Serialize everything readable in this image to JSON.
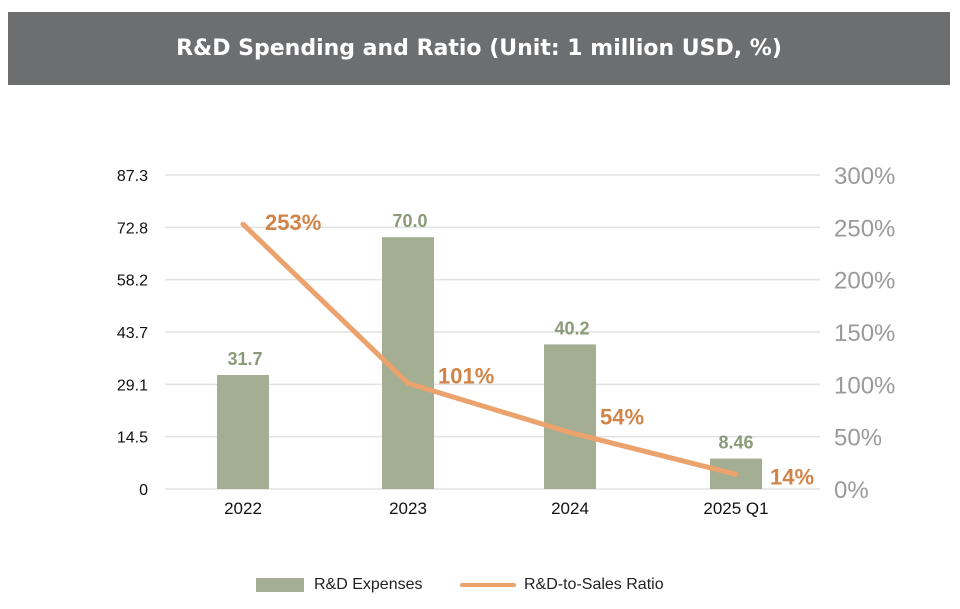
{
  "header": {
    "title": "R&D Spending and Ratio (Unit: 1 million USD, %)"
  },
  "colors": {
    "bar": "#a3ae92",
    "bar_label": "#8a9a78",
    "line": "#eba26c",
    "ratio_label": "#d08447",
    "grid": "#e2e2e2",
    "header_bg": "#6d6e70"
  },
  "chart_data": {
    "type": "bar",
    "title": "R&D Spending and Ratio (Unit: 1 million USD, %)",
    "categories": [
      "2022",
      "2023",
      "2024",
      "2025 Q1"
    ],
    "series": [
      {
        "name": "R&D Expenses",
        "type": "bar",
        "axis": "left",
        "values": [
          31.7,
          70.0,
          40.2,
          8.46
        ],
        "labels": [
          "31.7",
          "70.0",
          "40.2",
          "8.46"
        ]
      },
      {
        "name": "R&D-to-Sales Ratio",
        "type": "line",
        "axis": "right",
        "values": [
          253,
          101,
          54,
          14
        ],
        "labels": [
          "253%",
          "101%",
          "54%",
          "14%"
        ]
      }
    ],
    "left_axis": {
      "ylim": [
        0,
        87.3
      ],
      "ticks": [
        "0",
        "14.5",
        "29.1",
        "43.7",
        "58.2",
        "72.8",
        "87.3"
      ]
    },
    "right_axis": {
      "ylim": [
        0,
        300
      ],
      "ticks": [
        "0%",
        "50%",
        "100%",
        "150%",
        "200%",
        "250%",
        "300%"
      ]
    },
    "grid": true,
    "legend": "bottom"
  },
  "legend": {
    "bar_label": "R&D Expenses",
    "line_label": "R&D-to-Sales Ratio"
  }
}
